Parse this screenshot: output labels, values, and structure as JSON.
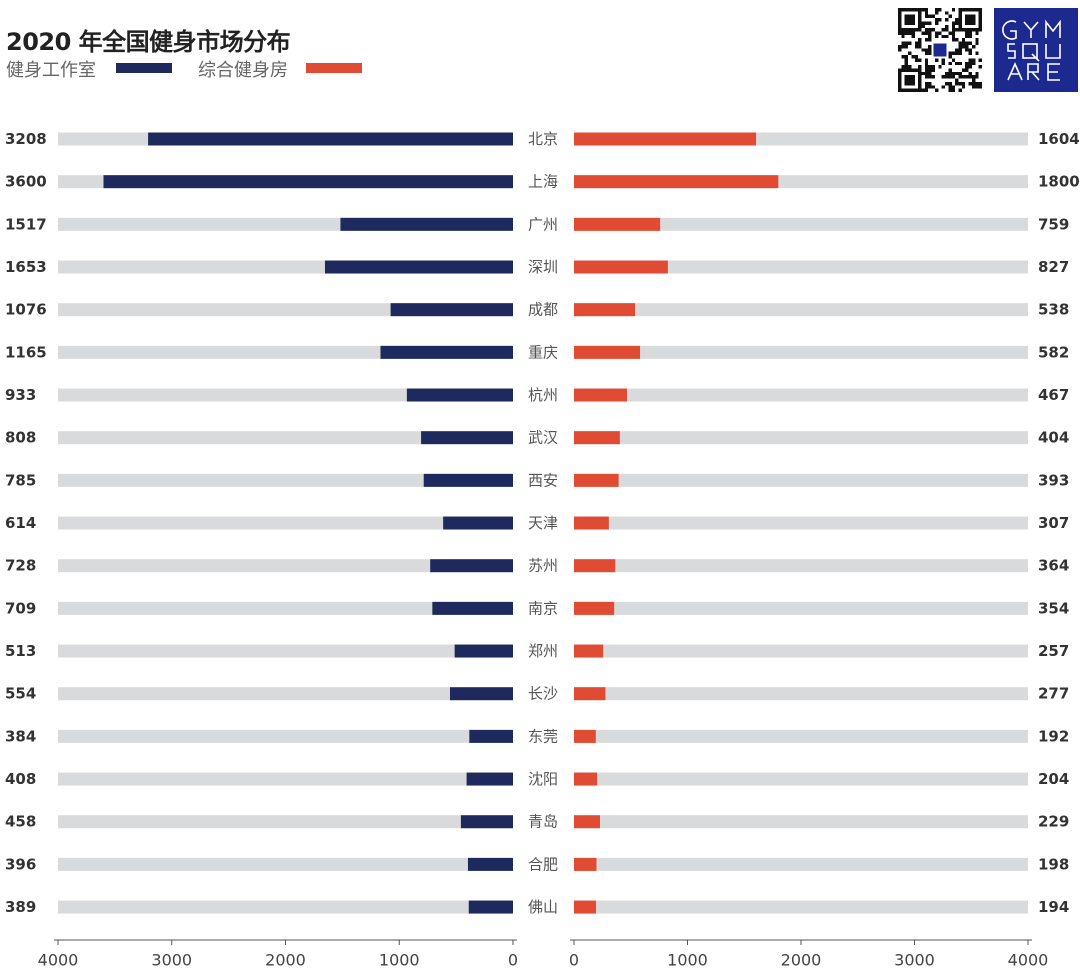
{
  "chart_data": {
    "type": "bar",
    "title": "2020 年全国健身市场分布",
    "categories": [
      "北京",
      "上海",
      "广州",
      "深圳",
      "成都",
      "重庆",
      "杭州",
      "武汉",
      "西安",
      "天津",
      "苏州",
      "南京",
      "郑州",
      "长沙",
      "东莞",
      "沈阳",
      "青岛",
      "合肥",
      "佛山"
    ],
    "series": [
      {
        "name": "健身工作室",
        "color": "#1e2a5e",
        "values": [
          3208,
          3600,
          1517,
          1653,
          1076,
          1165,
          933,
          808,
          785,
          614,
          728,
          709,
          513,
          554,
          384,
          408,
          458,
          396,
          389
        ]
      },
      {
        "name": "综合健身房",
        "color": "#e04b33",
        "values": [
          1604,
          1800,
          759,
          827,
          538,
          582,
          467,
          404,
          393,
          307,
          364,
          354,
          257,
          277,
          192,
          204,
          229,
          198,
          194
        ]
      }
    ],
    "xlim": [
      0,
      4000
    ],
    "xticks": [
      4000,
      3000,
      2000,
      1000,
      0
    ],
    "xticks_right": [
      0,
      1000,
      2000,
      3000,
      4000
    ],
    "grid": false,
    "legend_position": "top-left",
    "track_color": "#d9dadb"
  },
  "brand": {
    "logo_text": "GYM SQUARE",
    "logo_color": "#1c2a8f"
  }
}
